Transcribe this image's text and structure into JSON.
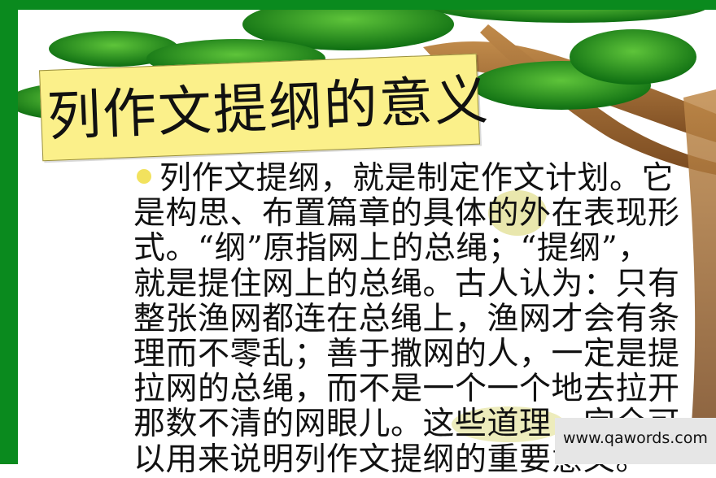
{
  "slide": {
    "title": "列作文提纲的意义",
    "body_lines": [
      "列作文提纲，就是制定作文计划。它",
      "是构思、布置篇章的具体的外在表现形",
      "式。“纲”原指网上的总绳；“提纲”，",
      "就是提住网上的总绳。古人认为：只有",
      "整张渔网都连在总绳上，渔网才会有条",
      "理而不零乱；善于撒网的人，一定是提",
      "拉网的总绳，而不是一个一个地去拉开",
      "那数不清的网眼儿。这些道理，完全可",
      "以用来说明列作文提纲的重要意义。"
    ]
  },
  "watermark": {
    "text": "www.qawords.com"
  },
  "colors": {
    "frame_green": "#0a8a1e",
    "leaf_green": "#1f8a1a",
    "title_yellow": "#fbf08a",
    "branch_brown": "#9a6a35"
  }
}
